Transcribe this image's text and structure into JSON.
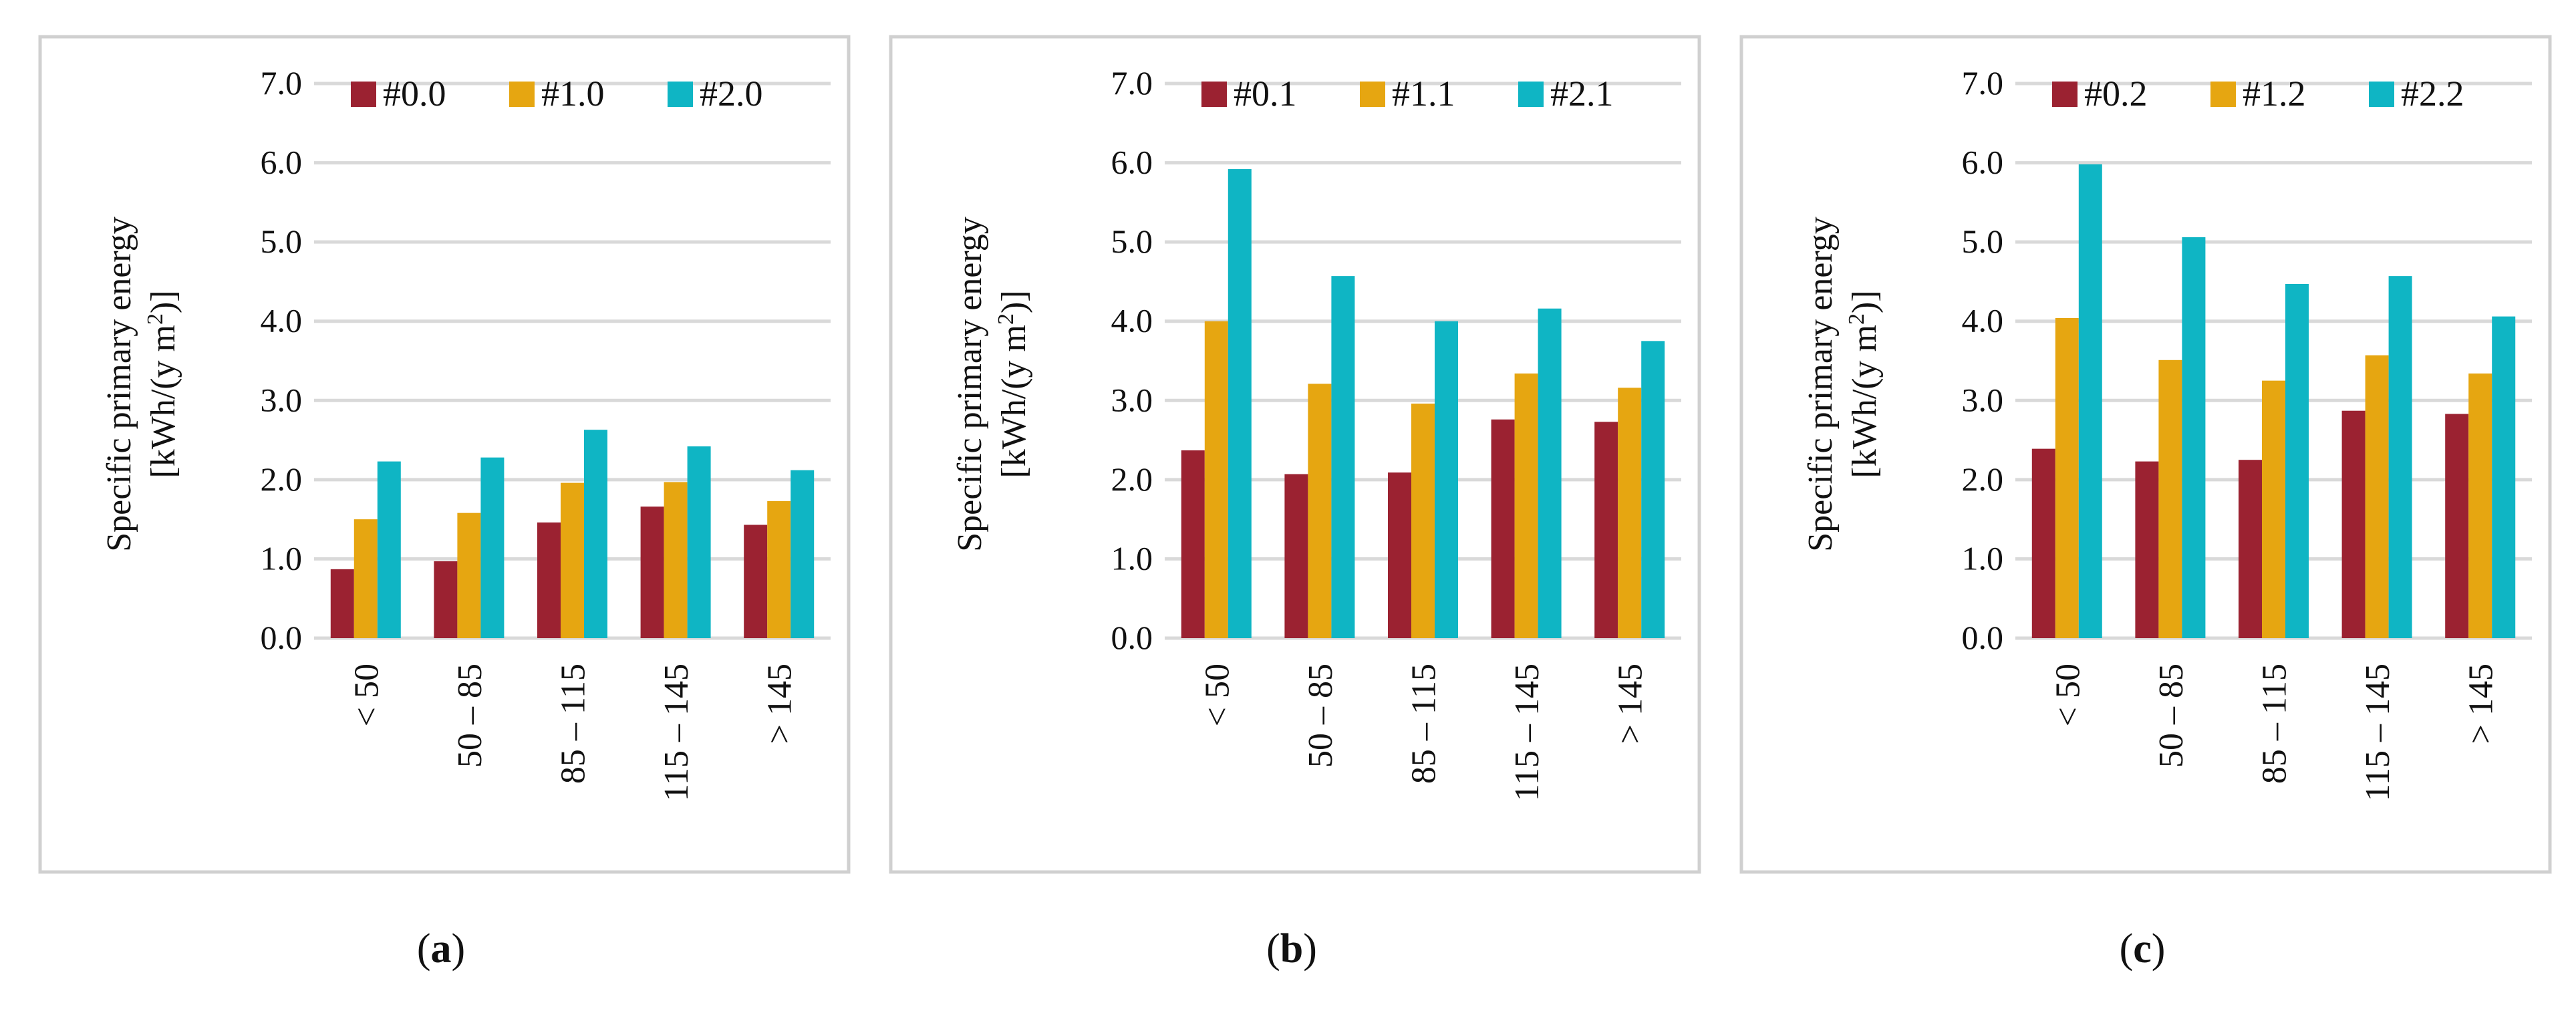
{
  "figure": {
    "panels": [
      {
        "caption": "(a)",
        "chart_data": {
          "type": "bar",
          "categories": [
            "< 50",
            "50 – 85",
            "85 – 115",
            "115 – 145",
            "> 145"
          ],
          "series": [
            {
              "name": "#0.0",
              "color": "#9B2231",
              "values": [
                0.87,
                0.97,
                1.46,
                1.66,
                1.43
              ]
            },
            {
              "name": "#1.0",
              "color": "#E6A611",
              "values": [
                1.5,
                1.58,
                1.96,
                1.97,
                1.73
              ]
            },
            {
              "name": "#2.0",
              "color": "#0FB5C4",
              "values": [
                2.23,
                2.28,
                2.63,
                2.42,
                2.12
              ]
            }
          ],
          "ylim": [
            0,
            7
          ],
          "yticks": [
            "0.0",
            "1.0",
            "2.0",
            "3.0",
            "4.0",
            "5.0",
            "6.0",
            "7.0"
          ],
          "ylabel_line1": "Specific primary energy",
          "ylabel_line2_pre": "[kWh/(y m",
          "ylabel_line2_sup": "2",
          "ylabel_line2_post": ")]",
          "grid": true,
          "legend": "top"
        }
      },
      {
        "caption": "(b)",
        "chart_data": {
          "type": "bar",
          "categories": [
            "< 50",
            "50 – 85",
            "85 – 115",
            "115 – 145",
            "> 145"
          ],
          "series": [
            {
              "name": "#0.1",
              "color": "#9B2231",
              "values": [
                2.37,
                2.07,
                2.09,
                2.76,
                2.73
              ]
            },
            {
              "name": "#1.1",
              "color": "#E6A611",
              "values": [
                4.0,
                3.21,
                2.96,
                3.34,
                3.16
              ]
            },
            {
              "name": "#2.1",
              "color": "#0FB5C4",
              "values": [
                5.92,
                4.57,
                4.0,
                4.16,
                3.75
              ]
            }
          ],
          "ylim": [
            0,
            7
          ],
          "yticks": [
            "0.0",
            "1.0",
            "2.0",
            "3.0",
            "4.0",
            "5.0",
            "6.0",
            "7.0"
          ],
          "ylabel_line1": "Specific primary energy",
          "ylabel_line2_pre": "[kWh/(y m",
          "ylabel_line2_sup": "2",
          "ylabel_line2_post": ")]",
          "grid": true,
          "legend": "top"
        }
      },
      {
        "caption": "(c)",
        "chart_data": {
          "type": "bar",
          "categories": [
            "< 50",
            "50 – 85",
            "85 – 115",
            "115 – 145",
            "> 145"
          ],
          "series": [
            {
              "name": "#0.2",
              "color": "#9B2231",
              "values": [
                2.39,
                2.23,
                2.25,
                2.87,
                2.83
              ]
            },
            {
              "name": "#1.2",
              "color": "#E6A611",
              "values": [
                4.04,
                3.51,
                3.25,
                3.57,
                3.34
              ]
            },
            {
              "name": "#2.2",
              "color": "#0FB5C4",
              "values": [
                5.98,
                5.06,
                4.47,
                4.57,
                4.06
              ]
            }
          ],
          "ylim": [
            0,
            7
          ],
          "yticks": [
            "0.0",
            "1.0",
            "2.0",
            "3.0",
            "4.0",
            "5.0",
            "6.0",
            "7.0"
          ],
          "ylabel_line1": "Specific primary energy",
          "ylabel_line2_pre": "[kWh/(y m",
          "ylabel_line2_sup": "2",
          "ylabel_line2_post": ")]",
          "grid": true,
          "legend": "top"
        }
      }
    ]
  }
}
